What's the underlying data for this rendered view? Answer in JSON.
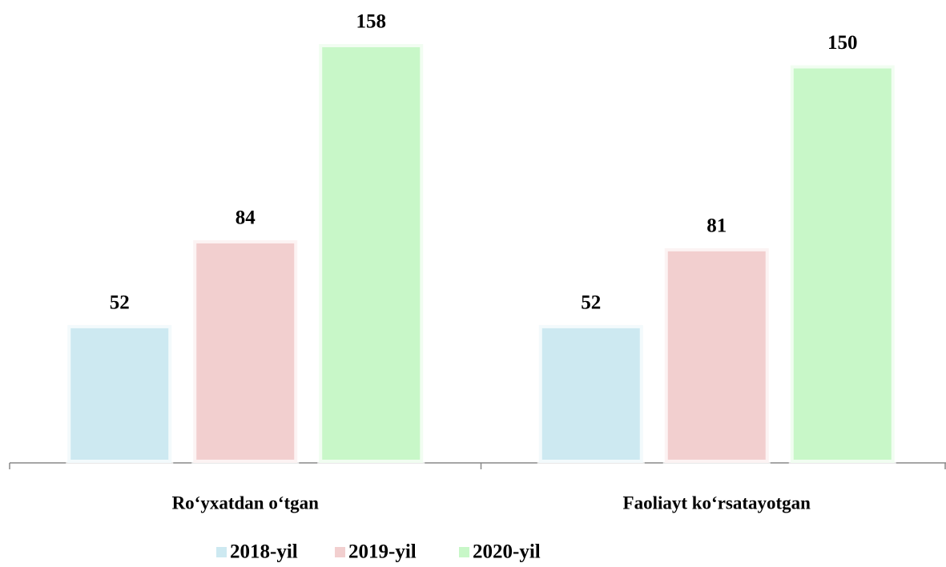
{
  "chart_data": {
    "type": "bar",
    "categories": [
      "Ro‘yxatdan o‘tgan",
      "Faoliayt ko‘rsatayotgan"
    ],
    "series": [
      {
        "name": "2018-yil",
        "color": "#cde9f1",
        "values": [
          52,
          52
        ]
      },
      {
        "name": "2019-yil",
        "color": "#f2cfcf",
        "values": [
          84,
          81
        ]
      },
      {
        "name": "2020-yil",
        "color": "#c8f7c8",
        "values": [
          158,
          150
        ]
      }
    ],
    "legend": "bottom"
  }
}
